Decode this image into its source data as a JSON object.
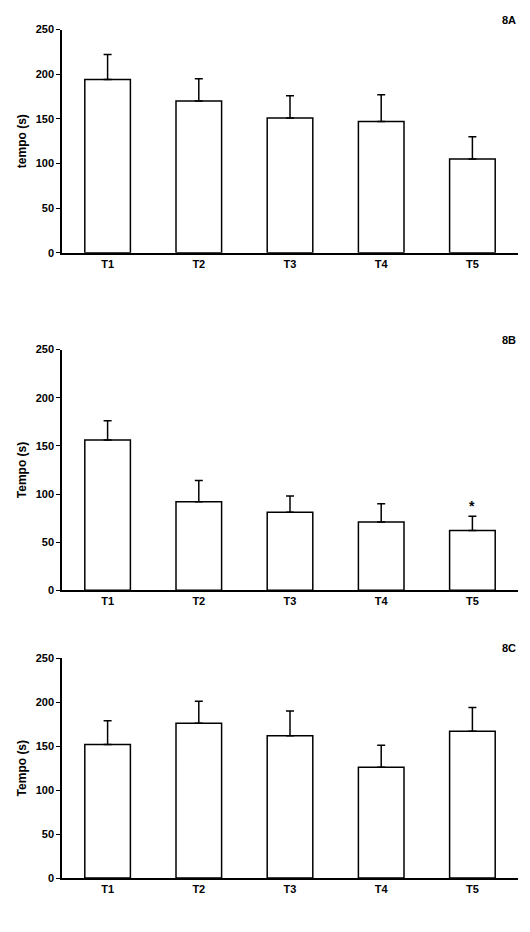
{
  "chart_data": [
    {
      "type": "bar",
      "title": "8A",
      "y_label": "tempo (s)",
      "categories": [
        "T1",
        "T2",
        "T3",
        "T4",
        "T5"
      ],
      "values": [
        194,
        170,
        151,
        147,
        105
      ],
      "errors": [
        28,
        25,
        25,
        30,
        25
      ],
      "color": "#ffffff",
      "ylim": [
        0,
        250
      ],
      "yticks": [
        0,
        50,
        100,
        150,
        200,
        250
      ],
      "grid": false
    },
    {
      "type": "bar",
      "title": "8B",
      "y_label": "Tempo (s)",
      "categories": [
        "T1",
        "T2",
        "T3",
        "T4",
        "T5"
      ],
      "values": [
        156,
        92,
        81,
        71,
        62
      ],
      "errors": [
        20,
        22,
        17,
        19,
        15
      ],
      "color": "#ffffff",
      "ylim": [
        0,
        250
      ],
      "yticks": [
        0,
        50,
        100,
        150,
        200,
        250
      ],
      "grid": false,
      "annotations": [
        {
          "text": "*",
          "category": "T5"
        }
      ]
    },
    {
      "type": "bar",
      "title": "8C",
      "y_label": "Tempo (s)",
      "categories": [
        "T1",
        "T2",
        "T3",
        "T4",
        "T5"
      ],
      "values": [
        152,
        176,
        162,
        126,
        167
      ],
      "errors": [
        27,
        25,
        28,
        25,
        27
      ],
      "color": "#ffffff",
      "ylim": [
        0,
        250
      ],
      "yticks": [
        0,
        50,
        100,
        150,
        200,
        250
      ],
      "grid": false
    }
  ]
}
